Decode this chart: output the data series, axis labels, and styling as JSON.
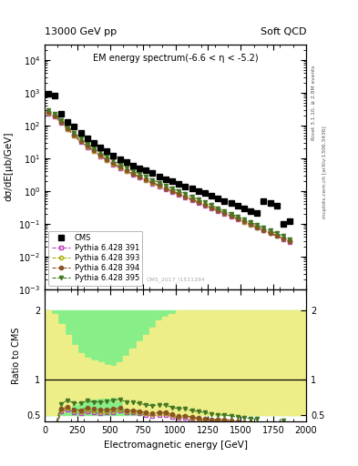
{
  "title_left": "13000 GeV pp",
  "title_right": "Soft QCD",
  "plot_title": "EM energy spectrum(-6.6 < η < -5.2)",
  "ylabel_main": "dσ/dE[μb/GeV]",
  "ylabel_ratio": "Ratio to CMS",
  "xlabel": "Electromagnetic energy [GeV]",
  "right_label": "Rivet 3.1.10, ≥ 2.8M events",
  "right_label2": "mcplots.cern.ch [arXiv:1306.3436]",
  "watermark": "CMS_2017_I1511284",
  "cms_x": [
    25,
    75,
    125,
    175,
    225,
    275,
    325,
    375,
    425,
    475,
    525,
    575,
    625,
    675,
    725,
    775,
    825,
    875,
    925,
    975,
    1025,
    1075,
    1125,
    1175,
    1225,
    1275,
    1325,
    1375,
    1425,
    1475,
    1525,
    1575,
    1625,
    1675,
    1725,
    1775,
    1825,
    1875
  ],
  "cms_y": [
    900,
    820,
    220,
    130,
    90,
    60,
    40,
    30,
    22,
    16,
    12,
    9,
    7.5,
    6.0,
    5.0,
    4.2,
    3.5,
    2.8,
    2.3,
    2.0,
    1.7,
    1.4,
    1.2,
    1.0,
    0.85,
    0.72,
    0.6,
    0.5,
    0.42,
    0.36,
    0.3,
    0.25,
    0.21,
    0.5,
    0.42,
    0.36,
    0.1,
    0.12
  ],
  "p391_x": [
    25,
    75,
    125,
    175,
    225,
    275,
    325,
    375,
    425,
    475,
    525,
    575,
    625,
    675,
    725,
    775,
    825,
    875,
    925,
    975,
    1025,
    1075,
    1125,
    1175,
    1225,
    1275,
    1325,
    1375,
    1425,
    1475,
    1525,
    1575,
    1625,
    1675,
    1725,
    1775,
    1825,
    1875
  ],
  "p391_y": [
    230,
    190,
    120,
    75,
    48,
    31,
    22,
    16,
    11.5,
    8.5,
    6.5,
    5.0,
    4.0,
    3.2,
    2.6,
    2.1,
    1.7,
    1.4,
    1.15,
    0.95,
    0.78,
    0.64,
    0.53,
    0.44,
    0.36,
    0.3,
    0.25,
    0.205,
    0.168,
    0.138,
    0.113,
    0.093,
    0.076,
    0.062,
    0.051,
    0.042,
    0.034,
    0.028
  ],
  "p393_x": [
    25,
    75,
    125,
    175,
    225,
    275,
    325,
    375,
    425,
    475,
    525,
    575,
    625,
    675,
    725,
    775,
    825,
    875,
    925,
    975,
    1025,
    1075,
    1125,
    1175,
    1225,
    1275,
    1325,
    1375,
    1425,
    1475,
    1525,
    1575,
    1625,
    1675,
    1725,
    1775,
    1825,
    1875
  ],
  "p393_y": [
    240,
    195,
    125,
    78,
    50,
    33,
    23,
    17,
    12.0,
    8.8,
    6.8,
    5.2,
    4.1,
    3.3,
    2.7,
    2.2,
    1.78,
    1.46,
    1.2,
    0.98,
    0.81,
    0.67,
    0.55,
    0.45,
    0.37,
    0.31,
    0.255,
    0.21,
    0.172,
    0.141,
    0.115,
    0.095,
    0.078,
    0.063,
    0.052,
    0.043,
    0.035,
    0.029
  ],
  "p394_x": [
    25,
    75,
    125,
    175,
    225,
    275,
    325,
    375,
    425,
    475,
    525,
    575,
    625,
    675,
    725,
    775,
    825,
    875,
    925,
    975,
    1025,
    1075,
    1125,
    1175,
    1225,
    1275,
    1325,
    1375,
    1425,
    1475,
    1525,
    1575,
    1625,
    1675,
    1725,
    1775,
    1825,
    1875
  ],
  "p394_y": [
    250,
    200,
    128,
    80,
    52,
    34,
    24,
    17.5,
    12.5,
    9.2,
    7.0,
    5.4,
    4.2,
    3.4,
    2.75,
    2.25,
    1.83,
    1.5,
    1.23,
    1.01,
    0.83,
    0.68,
    0.56,
    0.46,
    0.38,
    0.31,
    0.26,
    0.213,
    0.175,
    0.144,
    0.118,
    0.097,
    0.079,
    0.065,
    0.053,
    0.044,
    0.036,
    0.03
  ],
  "p395_x": [
    25,
    75,
    125,
    175,
    225,
    275,
    325,
    375,
    425,
    475,
    525,
    575,
    625,
    675,
    725,
    775,
    825,
    875,
    925,
    975,
    1025,
    1075,
    1125,
    1175,
    1225,
    1275,
    1325,
    1375,
    1425,
    1475,
    1525,
    1575,
    1625,
    1675,
    1725,
    1775,
    1825,
    1875
  ],
  "p395_y": [
    290,
    230,
    145,
    92,
    60,
    40,
    28,
    20.5,
    15,
    11,
    8.5,
    6.5,
    5.1,
    4.1,
    3.3,
    2.7,
    2.2,
    1.8,
    1.47,
    1.21,
    1.0,
    0.82,
    0.67,
    0.55,
    0.45,
    0.37,
    0.3,
    0.248,
    0.204,
    0.167,
    0.137,
    0.112,
    0.092,
    0.075,
    0.062,
    0.051,
    0.042,
    0.034
  ],
  "color_cms": "#000000",
  "color_391": "#bb44bb",
  "color_393": "#aaaa00",
  "color_394": "#885522",
  "color_395": "#447722",
  "xlim": [
    0,
    2000
  ],
  "ylim_main": [
    0.001,
    30000
  ],
  "ylim_ratio": [
    0.4,
    2.3
  ],
  "yticks_ratio": [
    0.5,
    1.0,
    2.0
  ],
  "yticklabels_ratio": [
    "0.5",
    "1",
    "2"
  ]
}
